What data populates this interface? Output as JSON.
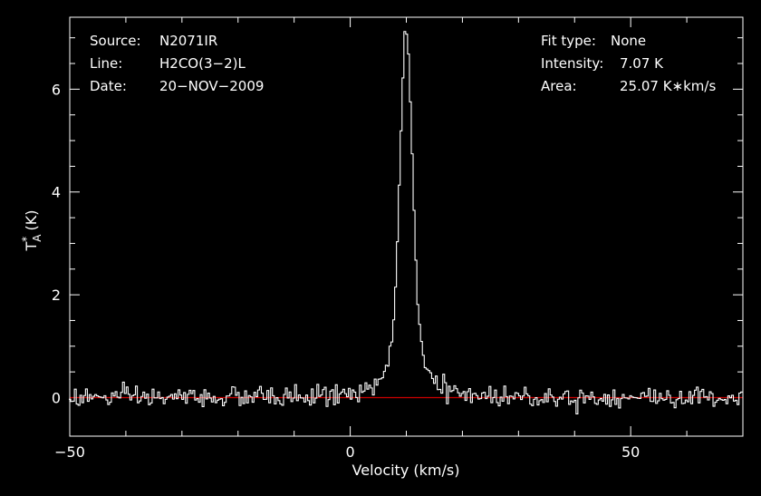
{
  "chart_data": {
    "type": "line",
    "xlabel": "Velocity (km/s)",
    "ylabel": {
      "main": "T",
      "sup": "*",
      "sub": "A",
      "unit": "(K)"
    },
    "xlim": [
      -50,
      70
    ],
    "ylim": [
      -0.75,
      7.4
    ],
    "xticks": {
      "major": [
        -50,
        0,
        50
      ],
      "labels": [
        "−50",
        "0",
        "50"
      ],
      "minor": [
        -40,
        -30,
        -20,
        -10,
        10,
        20,
        30,
        40,
        60
      ]
    },
    "yticks": {
      "major": [
        0,
        2,
        4,
        6
      ],
      "labels": [
        "0",
        "2",
        "4",
        "6"
      ],
      "minor": [
        0.5,
        1,
        1.5,
        2.5,
        3,
        3.5,
        4.5,
        5,
        5.5,
        6.5,
        7
      ]
    },
    "grid": false,
    "info_left": [
      {
        "key": "Source:",
        "value": "N2071IR"
      },
      {
        "key": "Line:",
        "value": "H2CO(3−2)L"
      },
      {
        "key": "Date:",
        "value": "20−NOV−2009"
      }
    ],
    "info_right": [
      {
        "key": "Fit type:",
        "value": "None"
      },
      {
        "key": "Intensity:",
        "value": "7.07 K"
      },
      {
        "key": "Area:",
        "value": "25.07 K∗km/s"
      }
    ],
    "series": [
      {
        "color": "#ffffff",
        "style": "step",
        "profile": {
          "center": 10.0,
          "peak": 7.07,
          "wing_range": [
            2,
            17
          ],
          "noise_rms": 0.1
        }
      },
      {
        "color": "#cc0000",
        "style": "line",
        "x": [
          -50,
          70
        ],
        "y": [
          0,
          0
        ]
      }
    ],
    "colors": {
      "background": "#000000",
      "axes": "#ffffff",
      "spectrum": "#ffffff",
      "baseline": "#cc0000"
    }
  }
}
